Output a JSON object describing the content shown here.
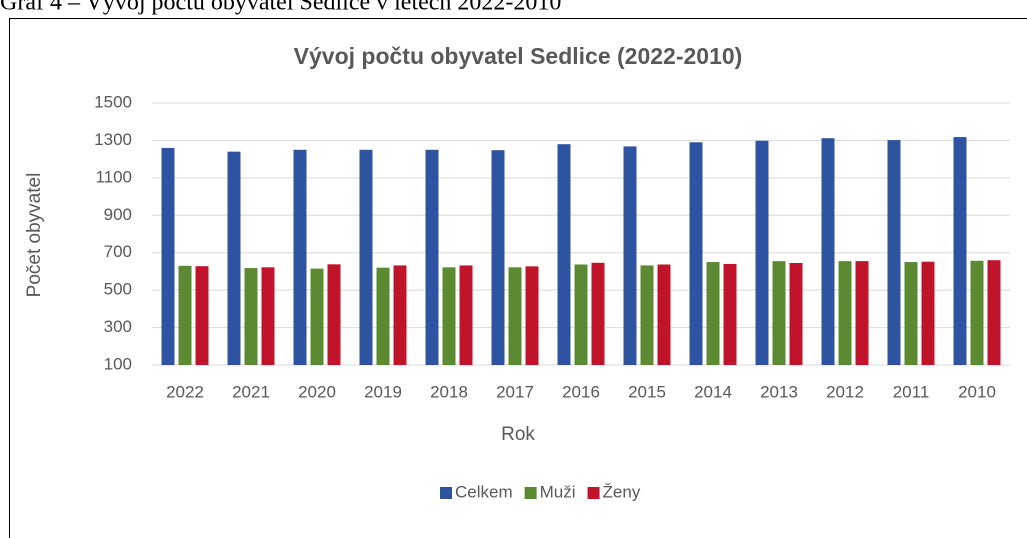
{
  "caption": "Graf 4 – Vývoj počtu obyvatel Sedlice v letech 2022-2010",
  "chart_data": {
    "type": "bar",
    "title": "Vývoj počtu obyvatel Sedlice (2022-2010)",
    "x_label": "Rok",
    "y_label": "Počet obyvatel",
    "categories": [
      "2022",
      "2021",
      "2020",
      "2019",
      "2018",
      "2017",
      "2016",
      "2015",
      "2014",
      "2013",
      "2012",
      "2011",
      "2010"
    ],
    "series": [
      {
        "name": "Celkem",
        "color": "#2e54a1",
        "values": [
          1260,
          1240,
          1250,
          1250,
          1250,
          1248,
          1280,
          1268,
          1290,
          1298,
          1312,
          1302,
          1318
        ]
      },
      {
        "name": "Muži",
        "color": "#5b8a32",
        "values": [
          630,
          618,
          615,
          620,
          622,
          622,
          637,
          632,
          650,
          655,
          655,
          650,
          657
        ]
      },
      {
        "name": "Ženy",
        "color": "#c0142b",
        "values": [
          628,
          622,
          638,
          632,
          632,
          627,
          646,
          637,
          640,
          645,
          655,
          652,
          660
        ]
      }
    ],
    "ylim": [
      100,
      1500
    ],
    "yticks": [
      100,
      300,
      500,
      700,
      900,
      1100,
      1300,
      1500
    ],
    "grid": true,
    "legend": "bottom"
  }
}
